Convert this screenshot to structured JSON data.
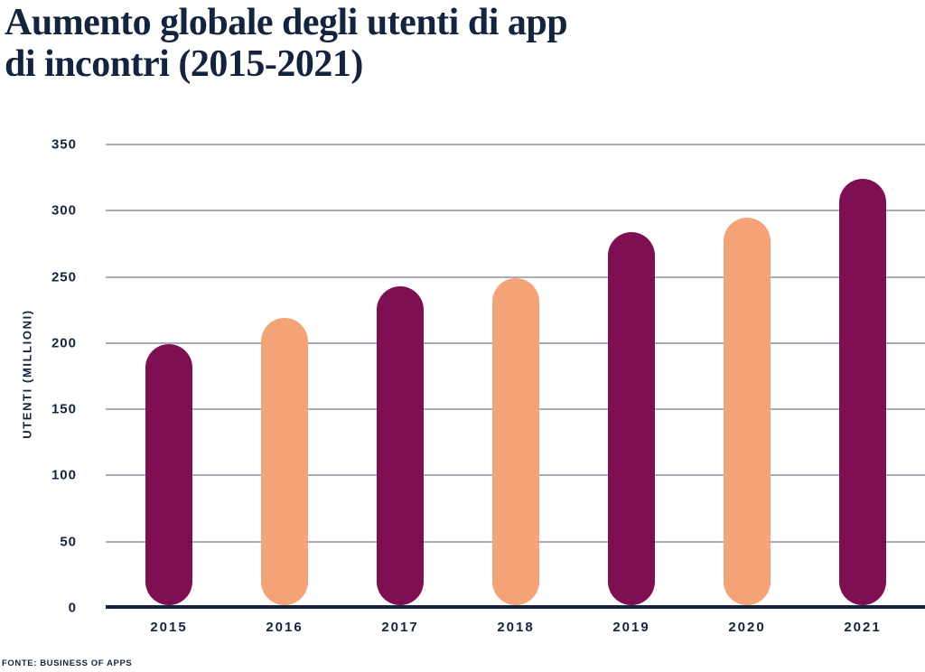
{
  "header": {
    "title_line1": "Aumento globale degli utenti di app",
    "title_line2": "di incontri (2015-2021)"
  },
  "chart_data": {
    "type": "bar",
    "title": "Aumento globale degli utenti di app di incontri (2015-2021)",
    "categories": [
      "2015",
      "2016",
      "2017",
      "2018",
      "2019",
      "2020",
      "2021"
    ],
    "values": [
      199,
      219,
      243,
      249,
      284,
      295,
      324
    ],
    "ylabel": "UTENTI (MILLIONI)",
    "xlabel": "",
    "ylim": [
      0,
      350
    ],
    "yticks": [
      0,
      50,
      100,
      150,
      200,
      250,
      300,
      350
    ],
    "grid": true,
    "legend": false,
    "bar_style": "rounded-pill",
    "colors": {
      "bar_alternating": [
        "#7E0F53",
        "#F4A377"
      ],
      "text": "#14243E",
      "gridline": "#A8ABB8",
      "axis": "#14243E",
      "background": "#FFFFFF"
    }
  },
  "footer": {
    "source": "FONTE: BUSINESS OF APPS"
  }
}
